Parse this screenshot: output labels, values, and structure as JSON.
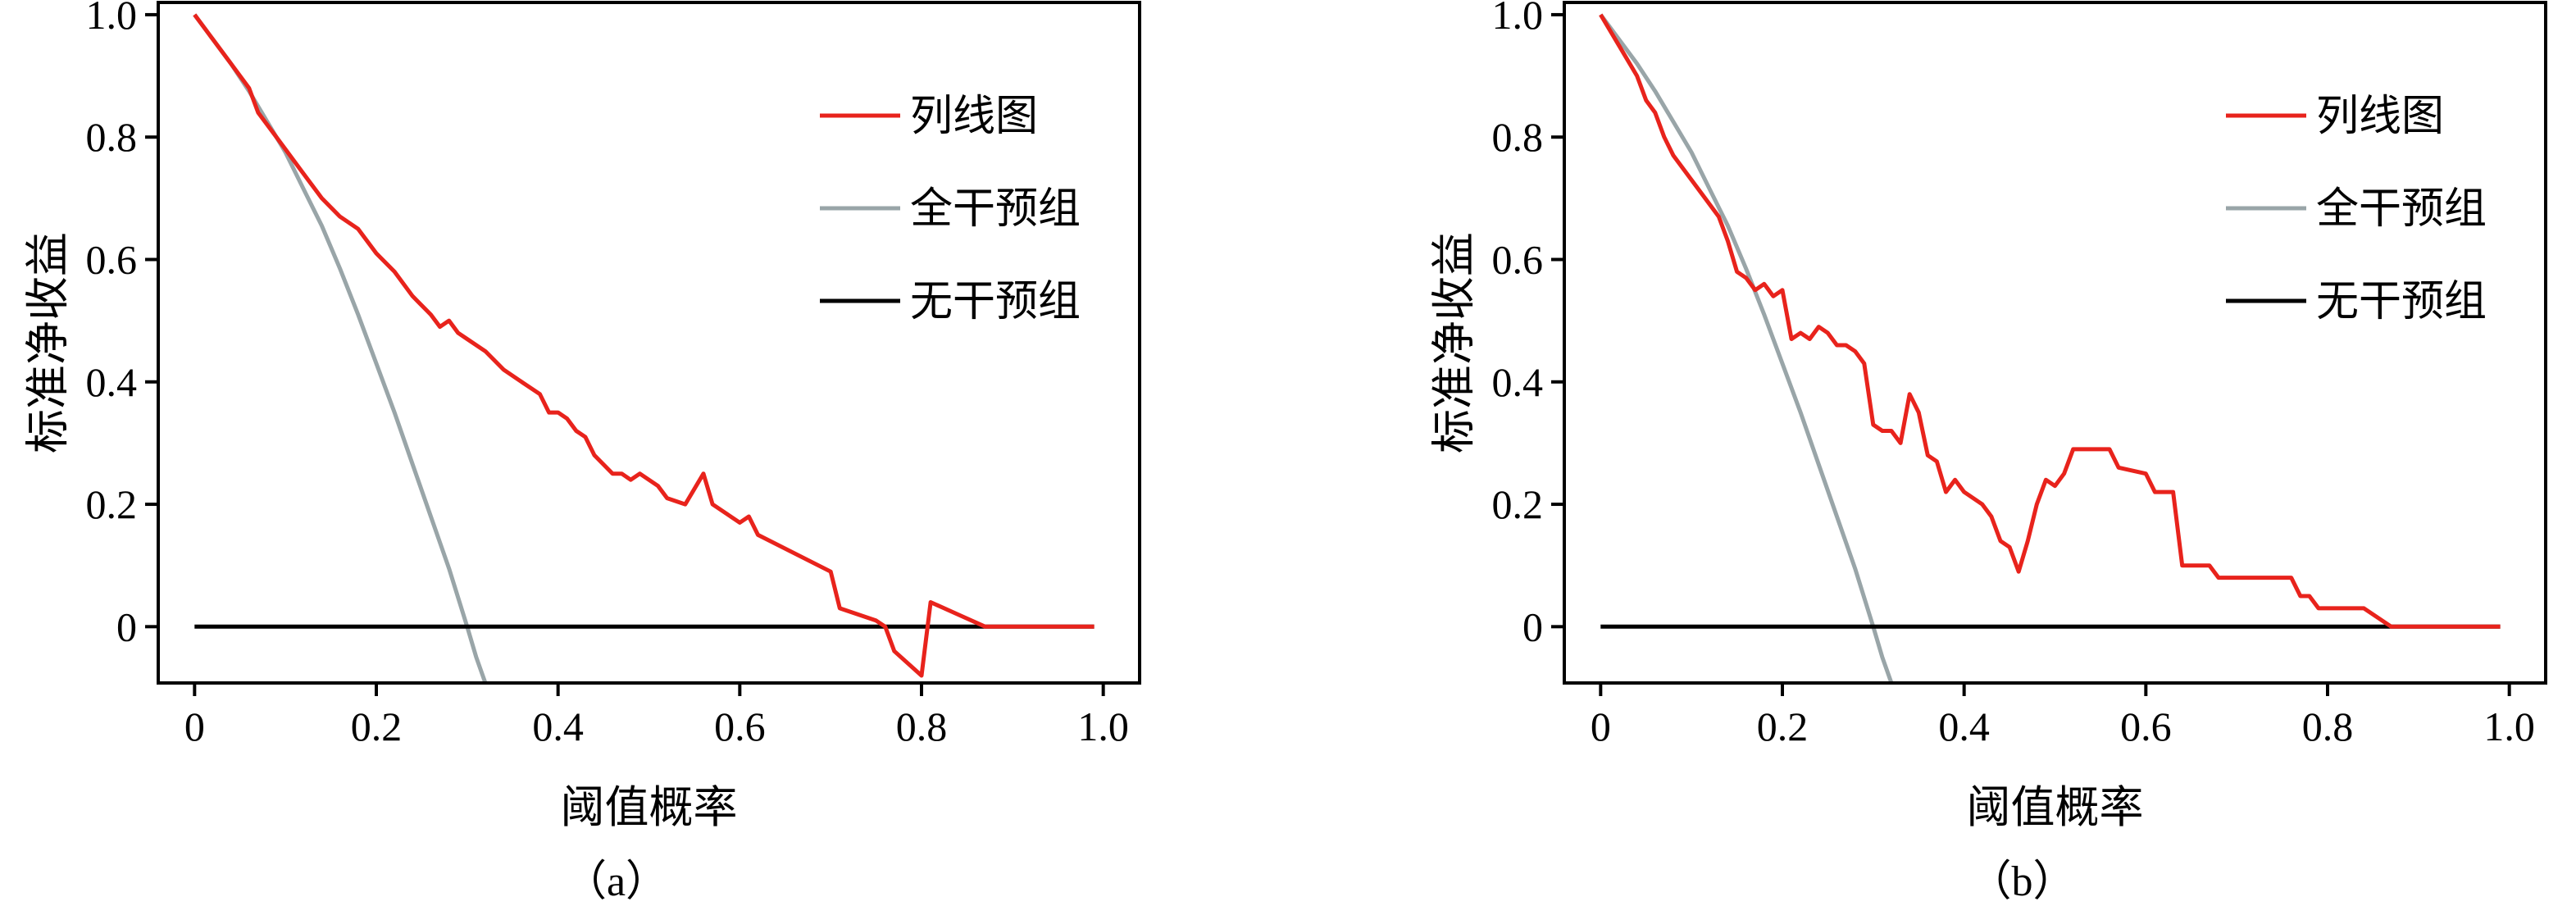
{
  "chart_data": [
    {
      "type": "line",
      "caption": "（a）",
      "xlabel": "阈值概率",
      "ylabel": "标准净收益",
      "xlim": [
        -0.04,
        1.04
      ],
      "ylim": [
        -0.092,
        1.02
      ],
      "xticks": [
        0,
        0.2,
        0.4,
        0.6,
        0.8,
        1.0
      ],
      "xtick_labels": [
        "0",
        "0.2",
        "0.4",
        "0.6",
        "0.8",
        "1.0"
      ],
      "yticks": [
        0,
        0.2,
        0.4,
        0.6,
        0.8,
        1.0
      ],
      "ytick_labels": [
        "0",
        "0.2",
        "0.4",
        "0.6",
        "0.8",
        "1.0"
      ],
      "legend_position": "top-right",
      "series": [
        {
          "name": "列线图",
          "color": "#e8231c",
          "x": [
            0,
            0.02,
            0.04,
            0.06,
            0.07,
            0.08,
            0.1,
            0.12,
            0.14,
            0.16,
            0.18,
            0.2,
            0.22,
            0.24,
            0.26,
            0.27,
            0.28,
            0.29,
            0.3,
            0.32,
            0.34,
            0.36,
            0.38,
            0.39,
            0.4,
            0.41,
            0.42,
            0.43,
            0.44,
            0.46,
            0.47,
            0.48,
            0.49,
            0.5,
            0.51,
            0.52,
            0.54,
            0.56,
            0.57,
            0.6,
            0.61,
            0.62,
            0.7,
            0.71,
            0.75,
            0.76,
            0.77,
            0.8,
            0.81,
            0.84,
            0.87,
            0.9,
            0.95,
            0.99
          ],
          "y": [
            1.0,
            0.96,
            0.92,
            0.88,
            0.84,
            0.82,
            0.78,
            0.74,
            0.7,
            0.67,
            0.65,
            0.61,
            0.58,
            0.54,
            0.51,
            0.49,
            0.5,
            0.48,
            0.47,
            0.45,
            0.42,
            0.4,
            0.38,
            0.35,
            0.35,
            0.34,
            0.32,
            0.31,
            0.28,
            0.25,
            0.25,
            0.24,
            0.25,
            0.24,
            0.23,
            0.21,
            0.2,
            0.25,
            0.2,
            0.17,
            0.18,
            0.15,
            0.09,
            0.03,
            0.01,
            0.0,
            -0.04,
            -0.08,
            0.04,
            0.02,
            0.0,
            0.0,
            0.0,
            0.0
          ]
        },
        {
          "name": "全干预组",
          "color": "#99a5a8",
          "x": [
            0,
            0.02,
            0.04,
            0.06,
            0.08,
            0.1,
            0.12,
            0.14,
            0.16,
            0.18,
            0.2,
            0.22,
            0.24,
            0.26,
            0.28,
            0.3,
            0.31,
            0.32
          ],
          "y": [
            1.0,
            0.96,
            0.92,
            0.875,
            0.825,
            0.775,
            0.715,
            0.655,
            0.585,
            0.51,
            0.43,
            0.35,
            0.265,
            0.18,
            0.095,
            0.0,
            -0.05,
            -0.092
          ]
        },
        {
          "name": "无干预组",
          "color": "#000000",
          "x": [
            0,
            0.99
          ],
          "y": [
            0,
            0
          ]
        }
      ]
    },
    {
      "type": "line",
      "caption": "（b）",
      "xlabel": "阈值概率",
      "ylabel": "标准净收益",
      "xlim": [
        -0.04,
        1.04
      ],
      "ylim": [
        -0.092,
        1.02
      ],
      "xticks": [
        0,
        0.2,
        0.4,
        0.6,
        0.8,
        1.0
      ],
      "xtick_labels": [
        "0",
        "0.2",
        "0.4",
        "0.6",
        "0.8",
        "1.0"
      ],
      "yticks": [
        0,
        0.2,
        0.4,
        0.6,
        0.8,
        1.0
      ],
      "ytick_labels": [
        "0",
        "0.2",
        "0.4",
        "0.6",
        "0.8",
        "1.0"
      ],
      "legend_position": "top-right",
      "series": [
        {
          "name": "列线图",
          "color": "#e8231c",
          "x": [
            0,
            0.02,
            0.04,
            0.05,
            0.06,
            0.07,
            0.08,
            0.1,
            0.12,
            0.13,
            0.14,
            0.15,
            0.16,
            0.17,
            0.18,
            0.19,
            0.2,
            0.21,
            0.22,
            0.23,
            0.24,
            0.25,
            0.26,
            0.27,
            0.28,
            0.29,
            0.3,
            0.31,
            0.32,
            0.33,
            0.34,
            0.35,
            0.36,
            0.37,
            0.38,
            0.39,
            0.4,
            0.42,
            0.43,
            0.44,
            0.45,
            0.46,
            0.47,
            0.48,
            0.49,
            0.5,
            0.51,
            0.52,
            0.56,
            0.57,
            0.6,
            0.61,
            0.63,
            0.64,
            0.67,
            0.68,
            0.69,
            0.76,
            0.77,
            0.78,
            0.79,
            0.84,
            0.87,
            0.9,
            0.95,
            0.99
          ],
          "y": [
            1.0,
            0.95,
            0.9,
            0.86,
            0.84,
            0.8,
            0.77,
            0.73,
            0.69,
            0.67,
            0.63,
            0.58,
            0.57,
            0.55,
            0.56,
            0.54,
            0.55,
            0.47,
            0.48,
            0.47,
            0.49,
            0.48,
            0.46,
            0.46,
            0.45,
            0.43,
            0.33,
            0.32,
            0.32,
            0.3,
            0.38,
            0.35,
            0.28,
            0.27,
            0.22,
            0.24,
            0.22,
            0.2,
            0.18,
            0.14,
            0.13,
            0.09,
            0.14,
            0.2,
            0.24,
            0.23,
            0.25,
            0.29,
            0.29,
            0.26,
            0.25,
            0.22,
            0.22,
            0.1,
            0.1,
            0.08,
            0.08,
            0.08,
            0.05,
            0.05,
            0.03,
            0.03,
            0.0,
            0.0,
            0.0,
            0.0
          ]
        },
        {
          "name": "全干预组",
          "color": "#99a5a8",
          "x": [
            0,
            0.02,
            0.04,
            0.06,
            0.08,
            0.1,
            0.12,
            0.14,
            0.16,
            0.18,
            0.2,
            0.22,
            0.24,
            0.26,
            0.28,
            0.3,
            0.31,
            0.32
          ],
          "y": [
            1.0,
            0.96,
            0.92,
            0.875,
            0.825,
            0.775,
            0.715,
            0.655,
            0.585,
            0.51,
            0.43,
            0.35,
            0.265,
            0.18,
            0.095,
            0.0,
            -0.05,
            -0.092
          ]
        },
        {
          "name": "无干预组",
          "color": "#000000",
          "x": [
            0,
            0.99
          ],
          "y": [
            0,
            0
          ]
        }
      ]
    }
  ]
}
